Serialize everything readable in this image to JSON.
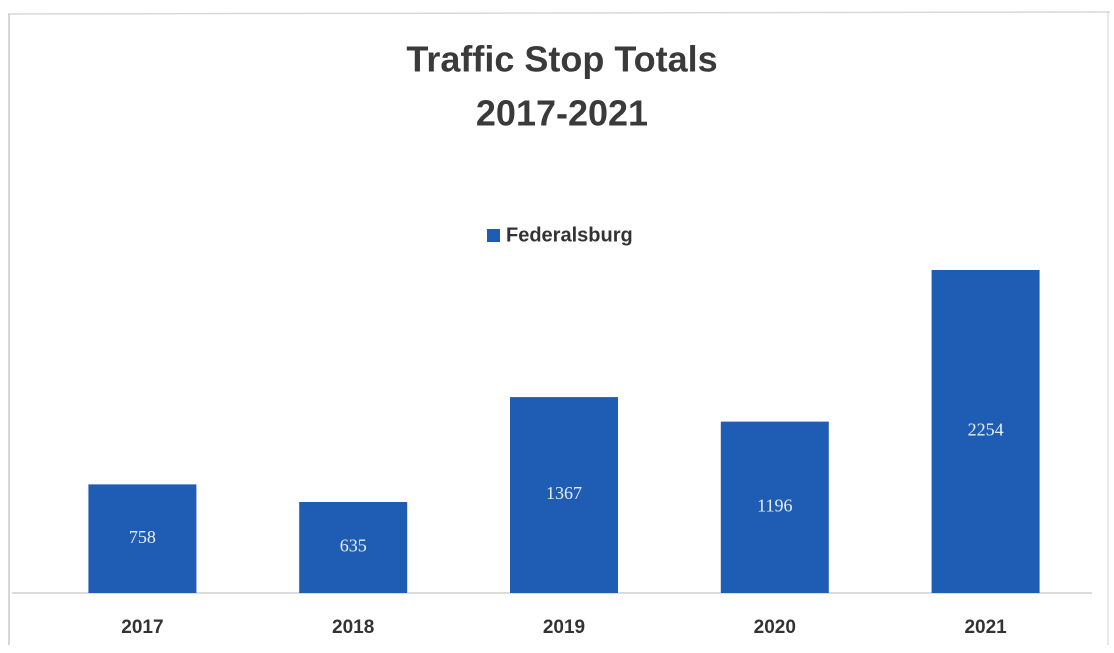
{
  "chart_data": {
    "type": "bar",
    "title": [
      "Traffic Stop Totals",
      "2017-2021"
    ],
    "categories": [
      "2017",
      "2018",
      "2019",
      "2020",
      "2021"
    ],
    "series": [
      {
        "name": "Federalsburg",
        "color": "#1f5db5",
        "values": [
          758,
          635,
          1367,
          1196,
          2254
        ]
      }
    ]
  }
}
